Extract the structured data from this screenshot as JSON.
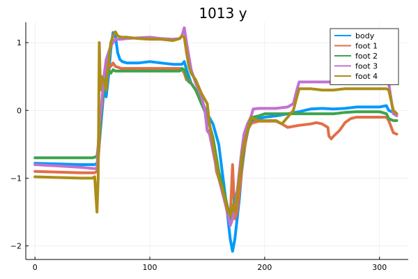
{
  "chart_data": {
    "type": "line",
    "title": "1013 y",
    "xlabel": "",
    "ylabel": "",
    "xlim": [
      -8,
      325
    ],
    "ylim": [
      -2.2,
      1.3
    ],
    "xticks": [
      0,
      100,
      200,
      300
    ],
    "yticks": [
      -2,
      -1,
      0,
      1
    ],
    "xtick_labels": [
      "0",
      "100",
      "200",
      "300"
    ],
    "ytick_labels": [
      "−2",
      "−1",
      "0",
      "1"
    ],
    "grid": true,
    "legend_position": "top-right",
    "series": [
      {
        "name": "body",
        "color": "#009AFA",
        "points": [
          [
            0,
            -0.78
          ],
          [
            20,
            -0.79
          ],
          [
            40,
            -0.8
          ],
          [
            52,
            -0.8
          ],
          [
            54,
            -0.78
          ],
          [
            55,
            -0.72
          ],
          [
            56,
            -0.5
          ],
          [
            58,
            -0.1
          ],
          [
            60,
            0.3
          ],
          [
            62,
            0.2
          ],
          [
            64,
            0.5
          ],
          [
            66,
            0.9
          ],
          [
            68,
            1.15
          ],
          [
            70,
            1.1
          ],
          [
            72,
            0.85
          ],
          [
            74,
            0.75
          ],
          [
            76,
            0.72
          ],
          [
            80,
            0.7
          ],
          [
            90,
            0.7
          ],
          [
            100,
            0.72
          ],
          [
            110,
            0.7
          ],
          [
            120,
            0.68
          ],
          [
            128,
            0.68
          ],
          [
            130,
            0.72
          ],
          [
            132,
            0.6
          ],
          [
            134,
            0.5
          ],
          [
            136,
            0.4
          ],
          [
            140,
            0.3
          ],
          [
            145,
            0.15
          ],
          [
            150,
            -0.05
          ],
          [
            155,
            -0.2
          ],
          [
            160,
            -0.5
          ],
          [
            163,
            -0.9
          ],
          [
            166,
            -1.3
          ],
          [
            168,
            -1.6
          ],
          [
            170,
            -1.9
          ],
          [
            172,
            -2.08
          ],
          [
            174,
            -1.9
          ],
          [
            176,
            -1.6
          ],
          [
            178,
            -1.3
          ],
          [
            180,
            -0.9
          ],
          [
            183,
            -0.5
          ],
          [
            186,
            -0.25
          ],
          [
            190,
            -0.15
          ],
          [
            195,
            -0.12
          ],
          [
            200,
            -0.1
          ],
          [
            210,
            -0.08
          ],
          [
            220,
            -0.05
          ],
          [
            230,
            -0.02
          ],
          [
            240,
            0.02
          ],
          [
            250,
            0.03
          ],
          [
            260,
            0.02
          ],
          [
            270,
            0.03
          ],
          [
            280,
            0.05
          ],
          [
            290,
            0.05
          ],
          [
            300,
            0.05
          ],
          [
            306,
            0.07
          ],
          [
            308,
            0.0
          ],
          [
            312,
            -0.03
          ],
          [
            315,
            -0.05
          ]
        ]
      },
      {
        "name": "foot 1",
        "color": "#E26F46",
        "points": [
          [
            0,
            -0.9
          ],
          [
            20,
            -0.91
          ],
          [
            40,
            -0.92
          ],
          [
            52,
            -0.92
          ],
          [
            54,
            -0.9
          ],
          [
            56,
            -0.5
          ],
          [
            58,
            0.0
          ],
          [
            60,
            0.4
          ],
          [
            62,
            0.65
          ],
          [
            64,
            0.7
          ],
          [
            66,
            0.65
          ],
          [
            68,
            0.7
          ],
          [
            70,
            0.65
          ],
          [
            75,
            0.62
          ],
          [
            80,
            0.62
          ],
          [
            90,
            0.62
          ],
          [
            100,
            0.62
          ],
          [
            110,
            0.62
          ],
          [
            120,
            0.62
          ],
          [
            126,
            0.62
          ],
          [
            128,
            0.6
          ],
          [
            130,
            0.55
          ],
          [
            132,
            0.45
          ],
          [
            134,
            0.45
          ],
          [
            136,
            0.4
          ],
          [
            140,
            0.3
          ],
          [
            145,
            0.1
          ],
          [
            148,
            0.0
          ],
          [
            150,
            -0.3
          ],
          [
            152,
            -0.3
          ],
          [
            155,
            -0.5
          ],
          [
            158,
            -0.9
          ],
          [
            160,
            -1.0
          ],
          [
            163,
            -1.1
          ],
          [
            165,
            -1.3
          ],
          [
            168,
            -1.5
          ],
          [
            170,
            -1.6
          ],
          [
            172,
            -0.8
          ],
          [
            174,
            -1.6
          ],
          [
            176,
            -1.5
          ],
          [
            178,
            -1.2
          ],
          [
            180,
            -0.9
          ],
          [
            182,
            -0.6
          ],
          [
            185,
            -0.3
          ],
          [
            188,
            -0.2
          ],
          [
            190,
            -0.18
          ],
          [
            195,
            -0.16
          ],
          [
            200,
            -0.16
          ],
          [
            210,
            -0.16
          ],
          [
            215,
            -0.2
          ],
          [
            220,
            -0.25
          ],
          [
            230,
            -0.22
          ],
          [
            240,
            -0.2
          ],
          [
            245,
            -0.18
          ],
          [
            250,
            -0.2
          ],
          [
            255,
            -0.25
          ],
          [
            256,
            -0.38
          ],
          [
            258,
            -0.42
          ],
          [
            260,
            -0.38
          ],
          [
            265,
            -0.3
          ],
          [
            270,
            -0.18
          ],
          [
            275,
            -0.12
          ],
          [
            280,
            -0.1
          ],
          [
            290,
            -0.1
          ],
          [
            300,
            -0.1
          ],
          [
            306,
            -0.1
          ],
          [
            308,
            -0.15
          ],
          [
            312,
            -0.33
          ],
          [
            315,
            -0.35
          ]
        ]
      },
      {
        "name": "foot 2",
        "color": "#3DA44D",
        "points": [
          [
            0,
            -0.7
          ],
          [
            20,
            -0.7
          ],
          [
            40,
            -0.7
          ],
          [
            50,
            -0.7
          ],
          [
            54,
            -0.68
          ],
          [
            56,
            -0.4
          ],
          [
            58,
            0.0
          ],
          [
            60,
            0.3
          ],
          [
            62,
            0.5
          ],
          [
            64,
            0.6
          ],
          [
            66,
            0.55
          ],
          [
            68,
            0.6
          ],
          [
            70,
            0.58
          ],
          [
            75,
            0.58
          ],
          [
            80,
            0.58
          ],
          [
            90,
            0.58
          ],
          [
            100,
            0.58
          ],
          [
            110,
            0.58
          ],
          [
            120,
            0.58
          ],
          [
            126,
            0.58
          ],
          [
            128,
            0.62
          ],
          [
            130,
            0.6
          ],
          [
            132,
            0.5
          ],
          [
            134,
            0.42
          ],
          [
            136,
            0.4
          ],
          [
            140,
            0.3
          ],
          [
            145,
            0.1
          ],
          [
            150,
            -0.1
          ],
          [
            155,
            -0.4
          ],
          [
            158,
            -0.7
          ],
          [
            160,
            -0.9
          ],
          [
            163,
            -1.1
          ],
          [
            166,
            -1.3
          ],
          [
            168,
            -1.45
          ],
          [
            170,
            -1.6
          ],
          [
            172,
            -1.5
          ],
          [
            174,
            -1.3
          ],
          [
            176,
            -1.2
          ],
          [
            178,
            -1.0
          ],
          [
            180,
            -0.8
          ],
          [
            182,
            -0.5
          ],
          [
            185,
            -0.3
          ],
          [
            188,
            -0.15
          ],
          [
            190,
            -0.1
          ],
          [
            195,
            -0.08
          ],
          [
            200,
            -0.05
          ],
          [
            210,
            -0.05
          ],
          [
            220,
            -0.05
          ],
          [
            230,
            -0.05
          ],
          [
            240,
            -0.05
          ],
          [
            250,
            -0.05
          ],
          [
            260,
            -0.05
          ],
          [
            270,
            -0.03
          ],
          [
            280,
            -0.02
          ],
          [
            290,
            -0.02
          ],
          [
            300,
            -0.02
          ],
          [
            306,
            -0.05
          ],
          [
            308,
            -0.12
          ],
          [
            312,
            -0.15
          ],
          [
            315,
            -0.15
          ]
        ]
      },
      {
        "name": "foot 3",
        "color": "#C271D2",
        "points": [
          [
            0,
            -0.8
          ],
          [
            20,
            -0.82
          ],
          [
            40,
            -0.84
          ],
          [
            52,
            -0.86
          ],
          [
            54,
            -0.85
          ],
          [
            56,
            -0.2
          ],
          [
            58,
            0.1
          ],
          [
            60,
            0.5
          ],
          [
            62,
            0.75
          ],
          [
            64,
            0.85
          ],
          [
            66,
            0.95
          ],
          [
            68,
            1.0
          ],
          [
            70,
            1.05
          ],
          [
            75,
            1.05
          ],
          [
            80,
            1.06
          ],
          [
            90,
            1.07
          ],
          [
            100,
            1.08
          ],
          [
            110,
            1.06
          ],
          [
            120,
            1.05
          ],
          [
            126,
            1.06
          ],
          [
            128,
            1.1
          ],
          [
            130,
            1.22
          ],
          [
            132,
            1.0
          ],
          [
            134,
            0.8
          ],
          [
            136,
            0.6
          ],
          [
            140,
            0.4
          ],
          [
            145,
            0.2
          ],
          [
            148,
            0.0
          ],
          [
            150,
            -0.3
          ],
          [
            152,
            -0.35
          ],
          [
            155,
            -0.6
          ],
          [
            158,
            -0.85
          ],
          [
            160,
            -1.0
          ],
          [
            163,
            -1.2
          ],
          [
            166,
            -1.4
          ],
          [
            168,
            -1.55
          ],
          [
            170,
            -1.7
          ],
          [
            172,
            -1.6
          ],
          [
            174,
            -1.45
          ],
          [
            176,
            -1.2
          ],
          [
            178,
            -0.9
          ],
          [
            180,
            -0.6
          ],
          [
            182,
            -0.35
          ],
          [
            185,
            -0.2
          ],
          [
            188,
            -0.1
          ],
          [
            190,
            0.02
          ],
          [
            195,
            0.03
          ],
          [
            200,
            0.03
          ],
          [
            210,
            0.03
          ],
          [
            220,
            0.05
          ],
          [
            225,
            0.1
          ],
          [
            228,
            0.3
          ],
          [
            230,
            0.42
          ],
          [
            240,
            0.42
          ],
          [
            250,
            0.42
          ],
          [
            260,
            0.42
          ],
          [
            270,
            0.45
          ],
          [
            280,
            0.45
          ],
          [
            290,
            0.45
          ],
          [
            300,
            0.45
          ],
          [
            306,
            0.45
          ],
          [
            308,
            0.4
          ],
          [
            312,
            -0.05
          ],
          [
            315,
            -0.08
          ]
        ]
      },
      {
        "name": "foot 4",
        "color": "#AC8D18",
        "points": [
          [
            0,
            -0.98
          ],
          [
            20,
            -0.99
          ],
          [
            40,
            -1.0
          ],
          [
            50,
            -1.0
          ],
          [
            52,
            -0.98
          ],
          [
            54,
            -1.5
          ],
          [
            55,
            -1.0
          ],
          [
            56,
            1.0
          ],
          [
            57,
            0.3
          ],
          [
            58,
            0.5
          ],
          [
            60,
            0.45
          ],
          [
            62,
            0.3
          ],
          [
            64,
            0.7
          ],
          [
            66,
            1.0
          ],
          [
            68,
            1.1
          ],
          [
            70,
            1.16
          ],
          [
            72,
            1.1
          ],
          [
            75,
            1.08
          ],
          [
            80,
            1.08
          ],
          [
            90,
            1.06
          ],
          [
            100,
            1.05
          ],
          [
            110,
            1.05
          ],
          [
            120,
            1.03
          ],
          [
            126,
            1.06
          ],
          [
            128,
            1.1
          ],
          [
            130,
            1.08
          ],
          [
            132,
            0.85
          ],
          [
            134,
            0.65
          ],
          [
            136,
            0.55
          ],
          [
            140,
            0.45
          ],
          [
            145,
            0.25
          ],
          [
            150,
            0.1
          ],
          [
            152,
            -0.2
          ],
          [
            155,
            -0.5
          ],
          [
            158,
            -0.8
          ],
          [
            160,
            -1.0
          ],
          [
            163,
            -1.15
          ],
          [
            166,
            -1.35
          ],
          [
            168,
            -1.5
          ],
          [
            170,
            -1.55
          ],
          [
            172,
            -1.4
          ],
          [
            174,
            -1.5
          ],
          [
            176,
            -1.3
          ],
          [
            178,
            -1.0
          ],
          [
            180,
            -0.7
          ],
          [
            182,
            -0.5
          ],
          [
            185,
            -0.3
          ],
          [
            188,
            -0.1
          ],
          [
            190,
            -0.12
          ],
          [
            195,
            -0.15
          ],
          [
            200,
            -0.15
          ],
          [
            210,
            -0.15
          ],
          [
            215,
            -0.2
          ],
          [
            220,
            -0.1
          ],
          [
            225,
            0.0
          ],
          [
            228,
            0.2
          ],
          [
            230,
            0.32
          ],
          [
            240,
            0.32
          ],
          [
            250,
            0.3
          ],
          [
            260,
            0.3
          ],
          [
            270,
            0.32
          ],
          [
            280,
            0.32
          ],
          [
            290,
            0.32
          ],
          [
            300,
            0.32
          ],
          [
            306,
            0.32
          ],
          [
            308,
            0.3
          ],
          [
            312,
            0.0
          ],
          [
            315,
            -0.05
          ]
        ]
      }
    ]
  }
}
